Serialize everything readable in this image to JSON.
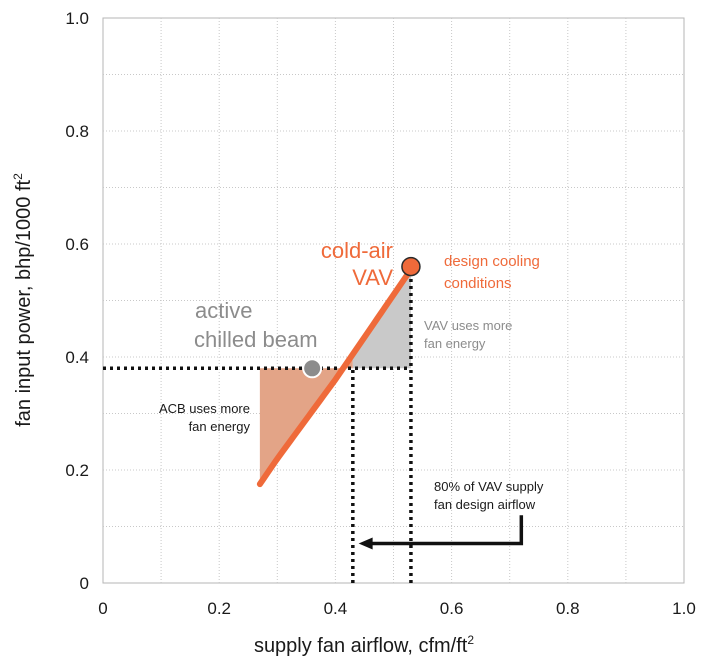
{
  "chart_data": {
    "type": "line",
    "xlabel": "supply fan airflow,  cfm/ft",
    "xlabel_sup": "2",
    "ylabel": "fan input power, bhp/1000 ft",
    "ylabel_sup": "2",
    "xlim": [
      0,
      1.0
    ],
    "ylim": [
      0,
      1.0
    ],
    "x_ticks": [
      "0",
      "0.2",
      "0.4",
      "0.6",
      "0.8",
      "1.0"
    ],
    "y_ticks": [
      "0",
      "0.2",
      "0.4",
      "0.6",
      "0.8",
      "1.0"
    ],
    "grid": true,
    "grid_style": "dotted",
    "series": [
      {
        "name": "cold-air VAV",
        "color": "#ef6a3a",
        "x": [
          0.27,
          0.3,
          0.35,
          0.4,
          0.45,
          0.5,
          0.53
        ],
        "y": [
          0.175,
          0.22,
          0.29,
          0.36,
          0.435,
          0.51,
          0.555
        ]
      }
    ],
    "points": [
      {
        "label": "design cooling conditions",
        "x": 0.53,
        "y": 0.56,
        "color": "#ef6a3a"
      },
      {
        "label": "active chilled beam",
        "x": 0.36,
        "y": 0.38,
        "color": "#8c8c8c"
      }
    ],
    "reference_lines": [
      {
        "orientation": "horizontal",
        "y": 0.38,
        "x_from": 0,
        "x_to": 0.53
      },
      {
        "orientation": "vertical",
        "x": 0.43,
        "y_from": 0,
        "y_to": 0.38
      },
      {
        "orientation": "vertical",
        "x": 0.53,
        "y_from": 0,
        "y_to": 0.56
      }
    ],
    "shaded_regions": [
      {
        "name": "ACB uses more fan energy",
        "color": "#e3a487",
        "x_from": 0.27,
        "x_to": 0.43,
        "y_top": 0.38
      },
      {
        "name": "VAV uses more fan energy",
        "color": "#c9c9c9",
        "x_from": 0.43,
        "x_to": 0.53,
        "y_bottom": 0.38
      }
    ],
    "arrow": {
      "x_from": 0.72,
      "x_to": 0.44,
      "y": 0.07
    }
  },
  "annotations": {
    "vav_line1": "cold-air",
    "vav_line2": "VAV",
    "design_line1": "design cooling",
    "design_line2": "conditions",
    "acb_line1": "active",
    "acb_line2": "chilled beam",
    "vav_more_line1": "VAV uses more",
    "vav_more_line2": "fan energy",
    "acb_more_line1": "ACB uses more",
    "acb_more_line2": "fan energy",
    "pct_line1": "80% of VAV supply",
    "pct_line2": "fan design airflow"
  }
}
